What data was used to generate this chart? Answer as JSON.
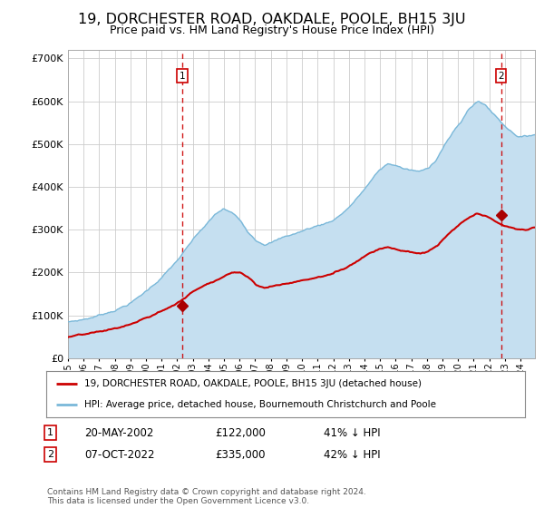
{
  "title": "19, DORCHESTER ROAD, OAKDALE, POOLE, BH15 3JU",
  "subtitle": "Price paid vs. HM Land Registry's House Price Index (HPI)",
  "title_fontsize": 11.5,
  "subtitle_fontsize": 9,
  "bg_color": "white",
  "plot_bg_color": "white",
  "hpi_color": "#7ab8d9",
  "hpi_fill_color": "#c5dff0",
  "price_color": "#cc0000",
  "marker_color": "#aa0000",
  "transaction1_price": 122000,
  "transaction2_price": 335000,
  "legend_label_price": "19, DORCHESTER ROAD, OAKDALE, POOLE, BH15 3JU (detached house)",
  "legend_label_hpi": "HPI: Average price, detached house, Bournemouth Christchurch and Poole",
  "annotation1_date": "20-MAY-2002",
  "annotation1_price": "£122,000",
  "annotation1_hpi": "41% ↓ HPI",
  "annotation2_date": "07-OCT-2022",
  "annotation2_price": "£335,000",
  "annotation2_hpi": "42% ↓ HPI",
  "footer": "Contains HM Land Registry data © Crown copyright and database right 2024.\nThis data is licensed under the Open Government Licence v3.0.",
  "ylim": [
    0,
    720000
  ],
  "yticks": [
    0,
    100000,
    200000,
    300000,
    400000,
    500000,
    600000,
    700000
  ],
  "start_year": 1995,
  "end_year": 2025,
  "t1_year": 2002,
  "t1_month": 5,
  "t2_year": 2022,
  "t2_month": 10
}
